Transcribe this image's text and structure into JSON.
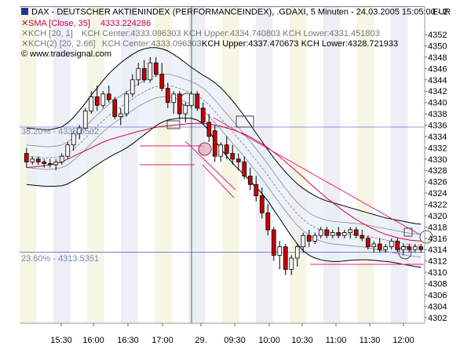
{
  "header": {
    "title": "DAX - DEUTSCHER AKTIENINDEX (PERFORMANCEINDEX), .GDAXI, 5 Minuten - 24.03.2005 15:05:00 - 2",
    "sma_label": "SMA [Close, 35]",
    "sma_value": "4333.224286",
    "kch1_label": "KCH [20, 1]",
    "kch1_values": "KCH Center:4333.096303 KCH Upper:4334.740803 KCH Lower:4331.451803",
    "kch2_label": "KCH(2) [20, 2.66]",
    "kch2_center": "KCH Center:4333.096303",
    "kch2_upper_lower": "KCH Upper:4337.470673 KCH Lower:4328.721933",
    "copyright": "© www.tradesignal.com",
    "currency": "EUR"
  },
  "fib": {
    "fib38_label": "38.20% - 4335.6502",
    "fib23_label": "23.60% - 4313.5351"
  },
  "colors": {
    "candle_up": "#ffffff",
    "candle_down": "#cc0000",
    "sma": "#d4003a",
    "kch_outer": "#000000",
    "kch_inner": "#555555",
    "fib_line": "#3333cc",
    "band_fill": "#e8eef8"
  },
  "chart_data": {
    "type": "candlestick",
    "ylim": [
      4301,
      4357
    ],
    "yticks": [
      4302,
      4304,
      4306,
      4308,
      4310,
      4312,
      4314,
      4316,
      4318,
      4320,
      4322,
      4324,
      4326,
      4328,
      4330,
      4332,
      4334,
      4336,
      4338,
      4340,
      4342,
      4344,
      4346,
      4348,
      4350,
      4352
    ],
    "xticks": [
      "15:30",
      "16:00",
      "16:30",
      "17:00",
      "29.",
      "09:30",
      "10:00",
      "10:30",
      "11:00",
      "11:30",
      "12:00"
    ],
    "bars": [
      {
        "o": 4331,
        "h": 4332,
        "l": 4328.5,
        "c": 4329.5
      },
      {
        "o": 4329.5,
        "h": 4330.5,
        "l": 4329,
        "c": 4330
      },
      {
        "o": 4330,
        "h": 4330.5,
        "l": 4329,
        "c": 4329.5
      },
      {
        "o": 4329.5,
        "h": 4330,
        "l": 4328.5,
        "c": 4329.2
      },
      {
        "o": 4329.2,
        "h": 4330,
        "l": 4328.5,
        "c": 4329
      },
      {
        "o": 4329,
        "h": 4330,
        "l": 4328,
        "c": 4329.5
      },
      {
        "o": 4329.5,
        "h": 4331,
        "l": 4329,
        "c": 4330.5
      },
      {
        "o": 4330.5,
        "h": 4333,
        "l": 4330,
        "c": 4332.5
      },
      {
        "o": 4332.5,
        "h": 4335,
        "l": 4331.5,
        "c": 4334.5
      },
      {
        "o": 4334.5,
        "h": 4336,
        "l": 4333.5,
        "c": 4335.5
      },
      {
        "o": 4335.5,
        "h": 4339,
        "l": 4335,
        "c": 4338.5
      },
      {
        "o": 4338.5,
        "h": 4342,
        "l": 4338,
        "c": 4341
      },
      {
        "o": 4341,
        "h": 4343,
        "l": 4338.5,
        "c": 4339.5
      },
      {
        "o": 4339.5,
        "h": 4342,
        "l": 4339,
        "c": 4341.5
      },
      {
        "o": 4341.5,
        "h": 4343,
        "l": 4340,
        "c": 4340.5
      },
      {
        "o": 4340.5,
        "h": 4341,
        "l": 4337,
        "c": 4337.5
      },
      {
        "o": 4337.5,
        "h": 4339,
        "l": 4336,
        "c": 4338
      },
      {
        "o": 4338,
        "h": 4342,
        "l": 4337.5,
        "c": 4341.5
      },
      {
        "o": 4341.5,
        "h": 4345,
        "l": 4341,
        "c": 4344
      },
      {
        "o": 4344,
        "h": 4347,
        "l": 4343,
        "c": 4346
      },
      {
        "o": 4346,
        "h": 4347.5,
        "l": 4343.5,
        "c": 4344
      },
      {
        "o": 4344,
        "h": 4348,
        "l": 4343.5,
        "c": 4347
      },
      {
        "o": 4347,
        "h": 4348,
        "l": 4344.5,
        "c": 4345
      },
      {
        "o": 4345,
        "h": 4347,
        "l": 4342,
        "c": 4342.5
      },
      {
        "o": 4342.5,
        "h": 4343.5,
        "l": 4339,
        "c": 4340
      },
      {
        "o": 4340,
        "h": 4342,
        "l": 4338,
        "c": 4341.5
      },
      {
        "o": 4341.5,
        "h": 4342,
        "l": 4337,
        "c": 4338
      },
      {
        "o": 4338,
        "h": 4340,
        "l": 4336.5,
        "c": 4339.5
      },
      {
        "o": 4339.5,
        "h": 4342,
        "l": 4339,
        "c": 4341.5
      },
      {
        "o": 4341.5,
        "h": 4342,
        "l": 4338.5,
        "c": 4339
      },
      {
        "o": 4339,
        "h": 4340,
        "l": 4336,
        "c": 4336.5
      },
      {
        "o": 4336.5,
        "h": 4338,
        "l": 4333,
        "c": 4334
      },
      {
        "o": 4335,
        "h": 4336,
        "l": 4329.5,
        "c": 4330.5
      },
      {
        "o": 4330.5,
        "h": 4333,
        "l": 4329.5,
        "c": 4332.5
      },
      {
        "o": 4332.5,
        "h": 4334,
        "l": 4330,
        "c": 4331
      },
      {
        "o": 4331,
        "h": 4332.5,
        "l": 4329,
        "c": 4330
      },
      {
        "o": 4330,
        "h": 4331,
        "l": 4328,
        "c": 4329.5
      },
      {
        "o": 4329.5,
        "h": 4330.5,
        "l": 4326.5,
        "c": 4327
      },
      {
        "o": 4327,
        "h": 4328.5,
        "l": 4324.5,
        "c": 4325.5
      },
      {
        "o": 4325.5,
        "h": 4327,
        "l": 4322.5,
        "c": 4323.5
      },
      {
        "o": 4323.5,
        "h": 4325,
        "l": 4319.5,
        "c": 4320.5
      },
      {
        "o": 4320.5,
        "h": 4322,
        "l": 4316.5,
        "c": 4317.5
      },
      {
        "o": 4317.5,
        "h": 4318,
        "l": 4312,
        "c": 4313
      },
      {
        "o": 4313,
        "h": 4315.5,
        "l": 4310.5,
        "c": 4314.5
      },
      {
        "o": 4314.5,
        "h": 4315,
        "l": 4309.5,
        "c": 4310.5
      },
      {
        "o": 4310.5,
        "h": 4313,
        "l": 4309.5,
        "c": 4312.5
      },
      {
        "o": 4312.5,
        "h": 4315,
        "l": 4311,
        "c": 4314.5
      },
      {
        "o": 4314.5,
        "h": 4317,
        "l": 4313.5,
        "c": 4316.5
      },
      {
        "o": 4316.5,
        "h": 4317.5,
        "l": 4314.5,
        "c": 4315.5
      },
      {
        "o": 4315.5,
        "h": 4317,
        "l": 4315,
        "c": 4316.5
      },
      {
        "o": 4316.5,
        "h": 4318,
        "l": 4316,
        "c": 4317.5
      },
      {
        "o": 4317.5,
        "h": 4318,
        "l": 4316,
        "c": 4316.5
      },
      {
        "o": 4316.5,
        "h": 4317.5,
        "l": 4316,
        "c": 4317
      },
      {
        "o": 4317,
        "h": 4318,
        "l": 4316,
        "c": 4316.5
      },
      {
        "o": 4316.5,
        "h": 4317.5,
        "l": 4316,
        "c": 4317
      },
      {
        "o": 4317,
        "h": 4318,
        "l": 4316,
        "c": 4317.5
      },
      {
        "o": 4317.5,
        "h": 4318,
        "l": 4316,
        "c": 4316.5
      },
      {
        "o": 4316.5,
        "h": 4317.5,
        "l": 4315.5,
        "c": 4316
      },
      {
        "o": 4316,
        "h": 4316.5,
        "l": 4314,
        "c": 4314.5
      },
      {
        "o": 4314.5,
        "h": 4315.5,
        "l": 4313.5,
        "c": 4315
      },
      {
        "o": 4315,
        "h": 4316,
        "l": 4313.5,
        "c": 4314
      },
      {
        "o": 4314,
        "h": 4315,
        "l": 4313.5,
        "c": 4314.5
      },
      {
        "o": 4314.5,
        "h": 4316,
        "l": 4314,
        "c": 4315.5
      },
      {
        "o": 4315.5,
        "h": 4316,
        "l": 4313.5,
        "c": 4314
      },
      {
        "o": 4314,
        "h": 4315,
        "l": 4313,
        "c": 4314.5
      },
      {
        "o": 4314.5,
        "h": 4315,
        "l": 4313.5,
        "c": 4314
      },
      {
        "o": 4314,
        "h": 4315,
        "l": 4313.5,
        "c": 4314.5
      },
      {
        "o": 4314.5,
        "h": 4315,
        "l": 4313.5,
        "c": 4314
      }
    ],
    "sma": [
      4328.5,
      4328.6,
      4328.7,
      4328.8,
      4329,
      4329.2,
      4329.5,
      4330,
      4330.5,
      4331,
      4331.5,
      4332,
      4332.5,
      4333,
      4333.4,
      4333.7,
      4334,
      4334.3,
      4334.6,
      4334.9,
      4335.1,
      4335.4,
      4335.6,
      4335.8,
      4335.9,
      4336,
      4336.1,
      4336.2,
      4336.3,
      4336.3,
      4336.3,
      4336.2,
      4336,
      4335.8,
      4335.5,
      4335.2,
      4334.8,
      4334.4,
      4333.9,
      4333.3,
      4332.7,
      4332,
      4331.2,
      4330.4,
      4329.5,
      4328.6,
      4327.7,
      4326.8,
      4325.8,
      4324.9,
      4324,
      4323.1,
      4322.3,
      4321.5,
      4320.7,
      4320,
      4319.3,
      4318.7,
      4318.1,
      4317.6,
      4317.1,
      4316.7,
      4316.4,
      4316.1,
      4315.9,
      4315.7,
      4315.6,
      4315.5
    ],
    "kch_center": [
      4330.5,
      4330.4,
      4330.3,
      4330.2,
      4330.2,
      4330.3,
      4330.5,
      4331,
      4331.8,
      4332.7,
      4333.7,
      4334.8,
      4335.8,
      4336.8,
      4337.7,
      4338.5,
      4339.2,
      4339.9,
      4340.6,
      4341.3,
      4341.9,
      4342.4,
      4342.8,
      4343,
      4343,
      4342.8,
      4342.5,
      4342.1,
      4341.7,
      4341.2,
      4340.5,
      4339.6,
      4338.4,
      4337.2,
      4336,
      4334.8,
      4333.6,
      4332.4,
      4331.1,
      4329.8,
      4328.5,
      4327.1,
      4325.6,
      4324.2,
      4322.8,
      4321.5,
      4320.3,
      4319.3,
      4318.5,
      4317.9,
      4317.5,
      4317.2,
      4317,
      4316.9,
      4316.8,
      4316.7,
      4316.6,
      4316.5,
      4316.3,
      4316.1,
      4315.9,
      4315.7,
      4315.5,
      4315.3,
      4315.1,
      4314.9,
      4314.8,
      4314.7
    ],
    "kch_inner_upper": [
      4332.5,
      4332.4,
      4332.3,
      4332.2,
      4332.2,
      4332.3,
      4332.5,
      4333,
      4333.8,
      4334.7,
      4335.7,
      4336.8,
      4337.8,
      4338.8,
      4339.7,
      4340.5,
      4341.2,
      4341.9,
      4342.6,
      4343.3,
      4343.9,
      4344.4,
      4344.8,
      4345,
      4345,
      4344.8,
      4344.5,
      4344.1,
      4343.7,
      4343.2,
      4342.5,
      4341.6,
      4340.4,
      4339.2,
      4338,
      4336.8,
      4335.6,
      4334.4,
      4333.1,
      4331.8,
      4330.5,
      4329.1,
      4327.6,
      4326.2,
      4324.8,
      4323.5,
      4322.3,
      4321.3,
      4320.5,
      4319.9,
      4319.5,
      4319.2,
      4319,
      4318.9,
      4318.8,
      4318.7,
      4318.6,
      4318.5,
      4318.3,
      4318.1,
      4317.9,
      4317.7,
      4317.5,
      4317.3,
      4317.1,
      4316.9,
      4316.8,
      4316.7
    ],
    "kch_inner_lower": [
      4328.5,
      4328.4,
      4328.3,
      4328.2,
      4328.2,
      4328.3,
      4328.5,
      4329,
      4329.8,
      4330.7,
      4331.7,
      4332.8,
      4333.8,
      4334.8,
      4335.7,
      4336.5,
      4337.2,
      4337.9,
      4338.6,
      4339.3,
      4339.9,
      4340.4,
      4340.8,
      4341,
      4341,
      4340.8,
      4340.5,
      4340.1,
      4339.7,
      4339.2,
      4338.5,
      4337.6,
      4336.4,
      4335.2,
      4334,
      4332.8,
      4331.6,
      4330.4,
      4329.1,
      4327.8,
      4326.5,
      4325.1,
      4323.6,
      4322.2,
      4320.8,
      4319.5,
      4318.3,
      4317.3,
      4316.5,
      4315.9,
      4315.5,
      4315.2,
      4315,
      4314.9,
      4314.8,
      4314.7,
      4314.6,
      4314.5,
      4314.3,
      4314.1,
      4313.9,
      4313.7,
      4313.5,
      4313.3,
      4313.1,
      4312.9,
      4312.8,
      4312.7
    ],
    "kch_outer_upper": [
      4335.5,
      4335.4,
      4335.3,
      4335.2,
      4335.2,
      4335.4,
      4335.7,
      4336.4,
      4337.4,
      4338.6,
      4339.9,
      4341.3,
      4342.6,
      4343.9,
      4345.1,
      4346.1,
      4347,
      4347.8,
      4348.5,
      4349.1,
      4349.5,
      4349.7,
      4349.7,
      4349.5,
      4349.1,
      4348.5,
      4347.8,
      4347,
      4346.2,
      4345.5,
      4344.8,
      4344.2,
      4343.5,
      4342.6,
      4341.5,
      4340.3,
      4339,
      4337.6,
      4336.1,
      4334.6,
      4333.1,
      4331.6,
      4330.2,
      4328.9,
      4327.7,
      4326.6,
      4325.6,
      4324.8,
      4324.1,
      4323.5,
      4323,
      4322.6,
      4322.3,
      4322,
      4321.7,
      4321.4,
      4321.1,
      4320.8,
      4320.5,
      4320.2,
      4319.9,
      4319.6,
      4319.4,
      4319.2,
      4319,
      4318.8,
      4318.6,
      4318.5
    ],
    "kch_outer_lower": [
      4325.5,
      4325.4,
      4325.3,
      4325.2,
      4325.2,
      4325.2,
      4325.3,
      4325.6,
      4326.2,
      4326.8,
      4327.5,
      4328.3,
      4329,
      4329.7,
      4330.3,
      4330.9,
      4331.4,
      4332,
      4332.7,
      4333.5,
      4334.3,
      4335.1,
      4335.9,
      4336.5,
      4336.9,
      4337.1,
      4337.2,
      4337.2,
      4337.2,
      4336.9,
      4336.2,
      4335,
      4333.3,
      4331.8,
      4330.5,
      4329.3,
      4328.2,
      4327.2,
      4326.1,
      4325,
      4323.9,
      4322.6,
      4321,
      4319.5,
      4317.9,
      4316.4,
      4315,
      4313.8,
      4313,
      4312.5,
      4312.2,
      4312,
      4311.9,
      4311.9,
      4312,
      4312.1,
      4312.2,
      4312.2,
      4312.2,
      4312.1,
      4312,
      4311.9,
      4311.8,
      4311.6,
      4311.4,
      4311.2,
      4311,
      4310.9
    ],
    "fib_levels": [
      4335.6502,
      4313.5351
    ]
  }
}
